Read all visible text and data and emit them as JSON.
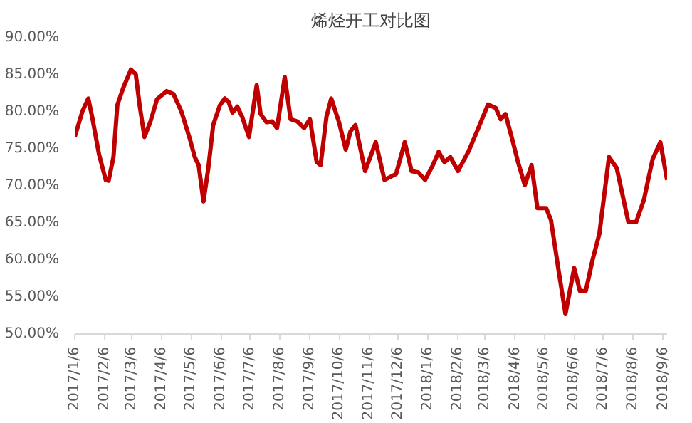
{
  "chart_data": {
    "type": "line",
    "title": "烯烃开工对比图",
    "x": [
      "2017-01-06",
      "2017-01-14",
      "2017-01-20",
      "2017-01-24",
      "2017-01-31",
      "2017-02-07",
      "2017-02-10",
      "2017-02-15",
      "2017-02-19",
      "2017-02-25",
      "2017-03-05",
      "2017-03-10",
      "2017-03-14",
      "2017-03-19",
      "2017-03-25",
      "2017-04-01",
      "2017-04-11",
      "2017-04-18",
      "2017-04-26",
      "2017-05-05",
      "2017-05-10",
      "2017-05-14",
      "2017-05-19",
      "2017-05-24",
      "2017-05-29",
      "2017-06-05",
      "2017-06-10",
      "2017-06-14",
      "2017-06-18",
      "2017-06-23",
      "2017-06-28",
      "2017-07-05",
      "2017-07-13",
      "2017-07-17",
      "2017-07-23",
      "2017-07-29",
      "2017-08-03",
      "2017-08-11",
      "2017-08-17",
      "2017-08-24",
      "2017-08-31",
      "2017-09-06",
      "2017-09-13",
      "2017-09-17",
      "2017-09-23",
      "2017-09-28",
      "2017-10-06",
      "2017-10-13",
      "2017-10-18",
      "2017-10-23",
      "2017-11-02",
      "2017-11-13",
      "2017-11-22",
      "2017-12-04",
      "2017-12-13",
      "2017-12-20",
      "2017-12-27",
      "2018-01-03",
      "2018-01-11",
      "2018-01-17",
      "2018-01-23",
      "2018-01-29",
      "2018-02-06",
      "2018-02-17",
      "2018-02-27",
      "2018-03-09",
      "2018-03-17",
      "2018-03-22",
      "2018-03-27",
      "2018-04-03",
      "2018-04-09",
      "2018-04-16",
      "2018-04-23",
      "2018-04-29",
      "2018-05-08",
      "2018-05-13",
      "2018-05-21",
      "2018-05-28",
      "2018-06-06",
      "2018-06-12",
      "2018-06-18",
      "2018-06-25",
      "2018-07-02",
      "2018-07-12",
      "2018-07-20",
      "2018-08-01",
      "2018-08-09",
      "2018-08-17",
      "2018-08-26",
      "2018-09-03",
      "2018-09-10"
    ],
    "series": [
      {
        "color": "#c00000",
        "values": [
          76.6,
          80.1,
          81.8,
          79.3,
          74.3,
          70.8,
          70.7,
          73.9,
          80.9,
          83.2,
          85.7,
          85.1,
          80.9,
          76.6,
          78.6,
          81.7,
          82.8,
          82.4,
          80.1,
          76.3,
          73.9,
          72.8,
          67.9,
          72.4,
          78.2,
          80.9,
          81.8,
          81.3,
          79.9,
          80.7,
          79.3,
          76.6,
          83.6,
          79.7,
          78.6,
          78.7,
          77.8,
          84.7,
          79.0,
          78.7,
          77.8,
          79.0,
          73.2,
          72.8,
          79.3,
          81.8,
          78.6,
          74.9,
          77.4,
          78.2,
          72.0,
          75.9,
          70.8,
          71.6,
          75.9,
          72.0,
          71.8,
          70.8,
          72.8,
          74.6,
          73.2,
          73.9,
          72.0,
          74.7,
          77.8,
          81.0,
          80.5,
          79.0,
          79.7,
          76.3,
          73.2,
          70.1,
          72.8,
          67.0,
          67.0,
          65.4,
          58.5,
          52.7,
          58.9,
          55.8,
          55.8,
          60.0,
          63.5,
          73.9,
          72.4,
          65.1,
          65.1,
          68.1,
          73.6,
          75.9,
          70.8
        ]
      }
    ],
    "xlim": [
      "2017-01-06",
      "2018-09-10"
    ],
    "xticks": [
      {
        "value": "2017-01-06",
        "label": "2017/1/6"
      },
      {
        "value": "2017-02-06",
        "label": "2017/2/6"
      },
      {
        "value": "2017-03-06",
        "label": "2017/3/6"
      },
      {
        "value": "2017-04-06",
        "label": "2017/4/6"
      },
      {
        "value": "2017-05-06",
        "label": "2017/5/6"
      },
      {
        "value": "2017-06-06",
        "label": "2017/6/6"
      },
      {
        "value": "2017-07-06",
        "label": "2017/7/6"
      },
      {
        "value": "2017-08-06",
        "label": "2017/8/6"
      },
      {
        "value": "2017-09-06",
        "label": "2017/9/6"
      },
      {
        "value": "2017-10-06",
        "label": "2017/10/6"
      },
      {
        "value": "2017-11-06",
        "label": "2017/11/6"
      },
      {
        "value": "2017-12-06",
        "label": "2017/12/6"
      },
      {
        "value": "2018-01-06",
        "label": "2018/1/6"
      },
      {
        "value": "2018-02-06",
        "label": "2018/2/6"
      },
      {
        "value": "2018-03-06",
        "label": "2018/3/6"
      },
      {
        "value": "2018-04-06",
        "label": "2018/4/6"
      },
      {
        "value": "2018-05-06",
        "label": "2018/5/6"
      },
      {
        "value": "2018-06-06",
        "label": "2018/6/6"
      },
      {
        "value": "2018-07-06",
        "label": "2018/7/6"
      },
      {
        "value": "2018-08-06",
        "label": "2018/8/6"
      },
      {
        "value": "2018-09-06",
        "label": "2018/9/6"
      }
    ],
    "ylim": [
      50,
      90
    ],
    "yticks": [
      {
        "value": 50,
        "label": "50.00%"
      },
      {
        "value": 55,
        "label": "55.00%"
      },
      {
        "value": 60,
        "label": "60.00%"
      },
      {
        "value": 65,
        "label": "65.00%"
      },
      {
        "value": 70,
        "label": "70.00%"
      },
      {
        "value": 75,
        "label": "75.00%"
      },
      {
        "value": 80,
        "label": "80.00%"
      },
      {
        "value": 85,
        "label": "85.00%"
      },
      {
        "value": 90,
        "label": "90.00%"
      }
    ],
    "line_style": "solid",
    "marker": "none"
  }
}
